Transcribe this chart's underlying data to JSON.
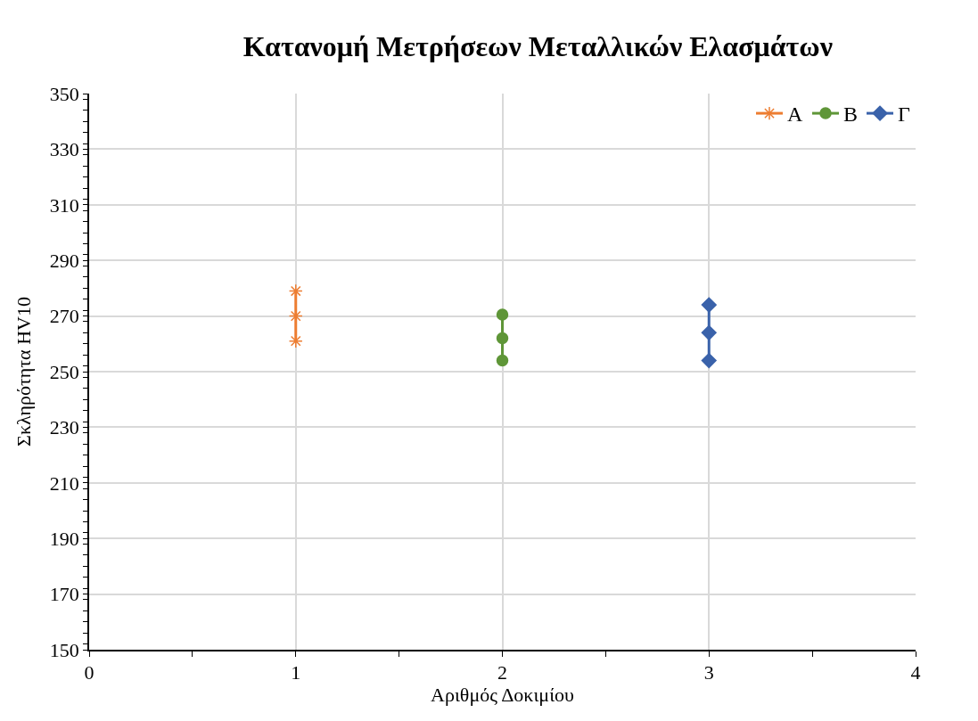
{
  "chart_data": {
    "type": "line",
    "title": "Κατανομή Μετρήσεων Μεταλλικών Ελασμάτων",
    "xlabel": "Αριθμός Δοκιμίου",
    "ylabel": "Σκληρότητα HV10",
    "series": [
      {
        "name": "A",
        "color": "#ed7d31",
        "marker": "cross",
        "x": [
          1,
          1,
          1
        ],
        "values": [
          279,
          270,
          261
        ]
      },
      {
        "name": "B",
        "color": "#5f9638",
        "marker": "circle",
        "x": [
          2,
          2,
          2
        ],
        "values": [
          270.5,
          262,
          254
        ]
      },
      {
        "name": "Γ",
        "color": "#3a62aa",
        "marker": "diamond",
        "x": [
          3,
          3,
          3
        ],
        "values": [
          274,
          264,
          254
        ]
      }
    ],
    "xlim": [
      0,
      4
    ],
    "xticks": [
      0,
      1,
      2,
      3,
      4
    ],
    "ylim": [
      150,
      350
    ],
    "yticks": [
      150,
      170,
      190,
      210,
      230,
      250,
      270,
      290,
      310,
      330,
      350
    ],
    "grid": true,
    "legend": "top right",
    "line_style": "solid"
  }
}
